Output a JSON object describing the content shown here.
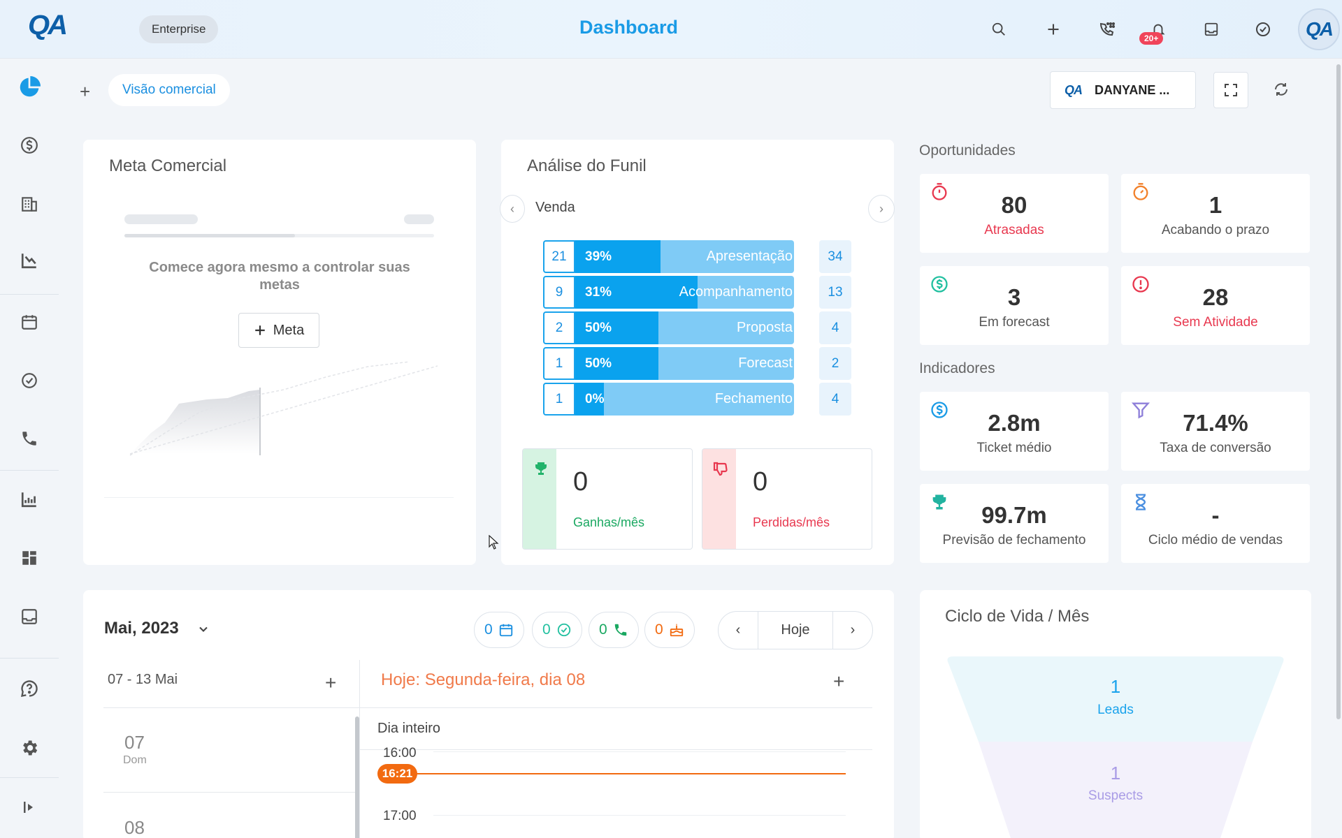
{
  "header": {
    "logo": "QA",
    "plan_badge": "Enterprise",
    "title": "Dashboard",
    "notification_count": "20+",
    "avatar_text": "QA"
  },
  "toolbar": {
    "tab_label": "Visão comercial",
    "user_logo": "QA",
    "user_name": "DANYANE ..."
  },
  "meta_comercial": {
    "title": "Meta Comercial",
    "empty_text": "Comece agora mesmo a controlar suas metas",
    "button_label": "Meta"
  },
  "funil": {
    "title": "Análise do Funil",
    "pipeline": "Venda",
    "stages": [
      {
        "count": "21",
        "pct": "39%",
        "fill": 39,
        "label": "Apresentação",
        "total": "34"
      },
      {
        "count": "9",
        "pct": "31%",
        "fill": 56,
        "label": "Acompanhamento",
        "total": "13"
      },
      {
        "count": "2",
        "pct": "50%",
        "fill": 38,
        "label": "Proposta",
        "total": "4"
      },
      {
        "count": "1",
        "pct": "50%",
        "fill": 38,
        "label": "Forecast",
        "total": "2"
      },
      {
        "count": "1",
        "pct": "0%",
        "fill": 13,
        "label": "Fechamento",
        "total": "4"
      }
    ],
    "ganhas": {
      "value": "0",
      "label": "Ganhas/mês"
    },
    "perdidas": {
      "value": "0",
      "label": "Perdidas/mês"
    }
  },
  "oportunidades": {
    "title": "Oportunidades",
    "cards": [
      {
        "value": "80",
        "label": "Atrasadas"
      },
      {
        "value": "1",
        "label": "Acabando o prazo"
      },
      {
        "value": "3",
        "label": "Em forecast"
      },
      {
        "value": "28",
        "label": "Sem Atividade"
      }
    ]
  },
  "indicadores": {
    "title": "Indicadores",
    "cards": [
      {
        "value": "2.8m",
        "label": "Ticket médio"
      },
      {
        "value": "71.4%",
        "label": "Taxa de conversão"
      },
      {
        "value": "99.7m",
        "label": "Previsão de fechamento"
      },
      {
        "value": "-",
        "label": "Ciclo médio de vendas"
      }
    ]
  },
  "calendar": {
    "month": "Mai, 2023",
    "chips": [
      "0",
      "0",
      "0",
      "0"
    ],
    "today_button": "Hoje",
    "week_range": "07 - 13 Mai",
    "today_title": "Hoje: Segunda-feira, dia 08",
    "all_day": "Dia inteiro",
    "hours": [
      "16:00",
      "17:00"
    ],
    "now_time": "16:21",
    "days": [
      {
        "num": "07",
        "name": "Dom"
      },
      {
        "num": "08",
        "name": ""
      }
    ]
  },
  "ciclo_vida": {
    "title": "Ciclo de Vida / Mês",
    "stages": [
      {
        "value": "1",
        "label": "Leads"
      },
      {
        "value": "1",
        "label": "Suspects"
      }
    ]
  },
  "colors": {
    "accent": "#1a9be6",
    "danger": "#e8384f",
    "success": "#2bb673",
    "orange": "#f26a10"
  }
}
